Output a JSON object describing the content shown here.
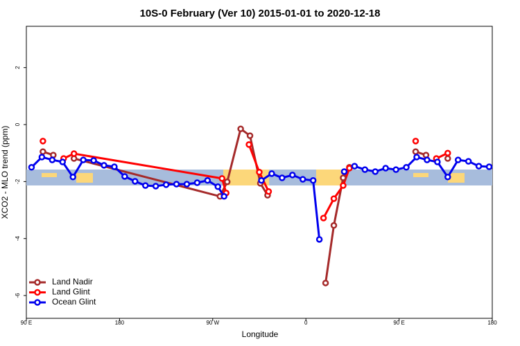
{
  "chart_data": {
    "type": "line",
    "title": "10S-0 February (Ver 10)   2015-01-01 to 2020-12-18",
    "xlabel": "Longitude",
    "ylabel": "XCO2 - MLO trend (ppm)",
    "xlim": [
      90,
      540
    ],
    "ylim": [
      -6.8,
      3.45
    ],
    "xticks": [
      {
        "value": 90,
        "label": "90 E"
      },
      180,
      {
        "value": 270,
        "label": "90 W"
      },
      {
        "value": 360,
        "label": "0"
      },
      {
        "value": 450,
        "label": "90 E"
      },
      {
        "value": 540,
        "label": "180"
      }
    ],
    "yticks": [
      -6,
      -4,
      -2,
      0,
      2
    ],
    "legend": "bottom-left",
    "series": [
      {
        "name": "Land Nadir",
        "color": "#a52a2a",
        "x": [
          106,
          116,
          126,
          136,
          277,
          284,
          297,
          306,
          316,
          323,
          350,
          379,
          387,
          396,
          402,
          430,
          466,
          476,
          486,
          497
        ],
        "values": [
          -0.95,
          -1.07,
          null,
          -1.19,
          -2.52,
          -2.01,
          -0.15,
          -0.39,
          -2.06,
          -2.48,
          null,
          -5.56,
          -3.54,
          -1.87,
          -1.5,
          null,
          -0.95,
          -1.07,
          null,
          -1.19
        ]
      },
      {
        "name": "Land Glint",
        "color": "#ff0000",
        "x": [
          106,
          116,
          126,
          136,
          279,
          283,
          294,
          305,
          315,
          324,
          350,
          377,
          387,
          396,
          402,
          430,
          466,
          476,
          486,
          497
        ],
        "values": [
          -0.58,
          null,
          -1.19,
          -1.02,
          -1.89,
          -2.4,
          null,
          -0.7,
          -1.67,
          -2.35,
          null,
          -3.28,
          -2.6,
          -2.14,
          -1.53,
          null,
          -0.58,
          null,
          -1.19,
          -1.0
        ]
      },
      {
        "name": "Ocean Glint",
        "color": "#0000ee",
        "x": [
          95,
          105,
          115,
          125,
          135,
          145,
          155,
          165,
          175,
          185,
          195,
          205,
          215,
          225,
          235,
          245,
          255,
          265,
          275,
          281,
          300,
          317,
          327,
          337,
          347,
          357,
          367,
          373,
          385,
          397,
          407,
          417,
          427,
          437,
          447,
          457,
          467,
          477,
          487,
          497,
          507,
          517,
          527,
          537
        ],
        "values": [
          -1.5,
          -1.14,
          -1.24,
          -1.31,
          -1.84,
          -1.24,
          -1.26,
          -1.43,
          -1.48,
          -1.82,
          -1.99,
          -2.14,
          -2.16,
          -2.11,
          -2.09,
          -2.09,
          -2.04,
          -1.96,
          -2.18,
          -2.52,
          null,
          -1.96,
          -1.72,
          -1.87,
          -1.77,
          -1.92,
          -1.96,
          -4.03,
          null,
          -1.65,
          -1.46,
          -1.58,
          -1.65,
          -1.53,
          -1.58,
          -1.5,
          -1.14,
          -1.24,
          -1.31,
          -1.84,
          -1.24,
          -1.29,
          -1.46,
          -1.48
        ]
      }
    ]
  }
}
